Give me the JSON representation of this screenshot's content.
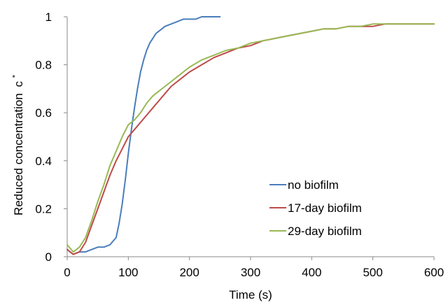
{
  "chart_data": {
    "type": "line",
    "title": "",
    "xlabel": "Time (s)",
    "ylabel": "Reduced concentration",
    "ylabel_symbol": "c",
    "ylabel_superscript": "*",
    "xlim": [
      0,
      600
    ],
    "ylim": [
      0,
      1
    ],
    "xticks": [
      0,
      100,
      200,
      300,
      400,
      500,
      600
    ],
    "yticks": [
      0,
      0.2,
      0.4,
      0.6,
      0.8,
      1
    ],
    "ytick_labels": [
      "0",
      "0.2",
      "0.4",
      "0.6",
      "0.8",
      "1"
    ],
    "grid": false,
    "legend_position": "lower-right",
    "series": [
      {
        "name": "no biofilm",
        "color": "#4a7ebb",
        "x": [
          0,
          10,
          20,
          30,
          40,
          50,
          60,
          70,
          80,
          85,
          90,
          95,
          100,
          105,
          110,
          115,
          120,
          125,
          130,
          135,
          140,
          145,
          150,
          155,
          160,
          170,
          180,
          190,
          200,
          210,
          220,
          230,
          240,
          250
        ],
        "y": [
          0.03,
          0.01,
          0.02,
          0.02,
          0.03,
          0.04,
          0.04,
          0.05,
          0.08,
          0.14,
          0.22,
          0.32,
          0.43,
          0.53,
          0.62,
          0.7,
          0.77,
          0.82,
          0.86,
          0.89,
          0.91,
          0.93,
          0.94,
          0.95,
          0.96,
          0.97,
          0.98,
          0.99,
          0.99,
          0.99,
          1.0,
          1.0,
          1.0,
          1.0
        ]
      },
      {
        "name": "17-day biofilm",
        "color": "#be4b48",
        "x": [
          0,
          10,
          20,
          30,
          40,
          50,
          60,
          70,
          80,
          90,
          100,
          110,
          120,
          130,
          140,
          150,
          160,
          170,
          180,
          190,
          200,
          220,
          240,
          260,
          280,
          300,
          320,
          340,
          360,
          380,
          400,
          420,
          440,
          460,
          480,
          500,
          520,
          540,
          560,
          580,
          600
        ],
        "y": [
          0.03,
          0.01,
          0.02,
          0.06,
          0.13,
          0.2,
          0.27,
          0.34,
          0.4,
          0.45,
          0.5,
          0.53,
          0.56,
          0.59,
          0.62,
          0.65,
          0.68,
          0.71,
          0.73,
          0.75,
          0.77,
          0.8,
          0.83,
          0.85,
          0.87,
          0.88,
          0.9,
          0.91,
          0.92,
          0.93,
          0.94,
          0.95,
          0.95,
          0.96,
          0.96,
          0.96,
          0.97,
          0.97,
          0.97,
          0.97,
          0.97
        ]
      },
      {
        "name": "29-day biofilm",
        "color": "#98b954",
        "x": [
          0,
          10,
          20,
          30,
          40,
          50,
          60,
          70,
          80,
          90,
          100,
          110,
          120,
          130,
          140,
          150,
          160,
          170,
          180,
          190,
          200,
          220,
          240,
          260,
          280,
          300,
          320,
          340,
          360,
          380,
          400,
          420,
          440,
          460,
          480,
          500,
          520,
          540,
          560,
          580,
          600
        ],
        "y": [
          0.05,
          0.02,
          0.04,
          0.08,
          0.15,
          0.23,
          0.3,
          0.38,
          0.44,
          0.5,
          0.55,
          0.57,
          0.6,
          0.64,
          0.67,
          0.69,
          0.71,
          0.73,
          0.75,
          0.77,
          0.79,
          0.82,
          0.84,
          0.86,
          0.87,
          0.89,
          0.9,
          0.91,
          0.92,
          0.93,
          0.94,
          0.95,
          0.95,
          0.96,
          0.96,
          0.97,
          0.97,
          0.97,
          0.97,
          0.97,
          0.97
        ]
      }
    ]
  }
}
